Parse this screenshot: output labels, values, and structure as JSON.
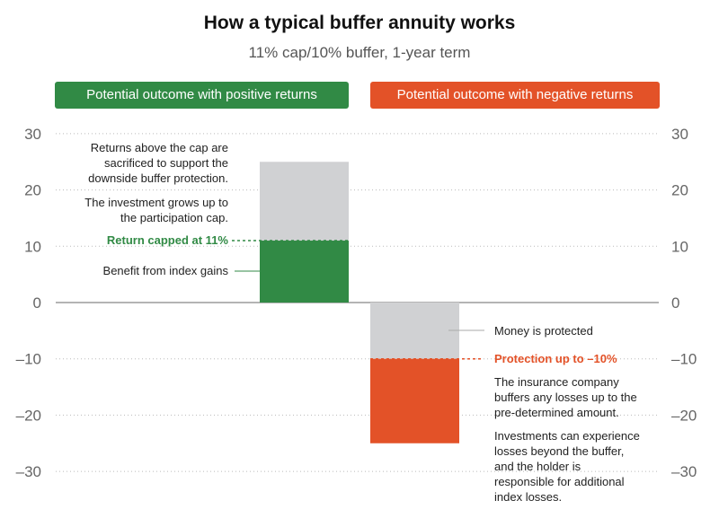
{
  "chart_data": {
    "type": "bar",
    "title": "How a typical buffer annuity works",
    "subtitle": "11% cap/10% buffer, 1-year term",
    "legend": [
      {
        "label": "Potential outcome with positive returns",
        "color": "#318a45"
      },
      {
        "label": "Potential outcome with negative returns",
        "color": "#e35228"
      }
    ],
    "ylim": [
      -30,
      30
    ],
    "yticks": [
      30,
      20,
      10,
      0,
      -10,
      -20,
      -30
    ],
    "ytick_labels": [
      "30",
      "20",
      "10",
      "0",
      "–10",
      "–20",
      "–30"
    ],
    "grid": true,
    "bars": [
      {
        "name": "positive",
        "index_return": 25,
        "credited": 11,
        "cap": 11,
        "color": "#318a45",
        "sacrificed_color": "#d0d1d3"
      },
      {
        "name": "negative",
        "index_return": -25,
        "buffer": -10,
        "loss": -15,
        "color": "#e35228",
        "protected_color": "#d0d1d3"
      }
    ],
    "annotations": {
      "sacrificed": [
        "Returns above the cap are",
        "sacrificed to support the",
        "downside buffer protection."
      ],
      "grows": [
        "The investment grows up to",
        "the participation cap."
      ],
      "capped": "Return capped at 11%",
      "benefit": "Benefit from index gains",
      "protected": "Money is protected",
      "protection": "Protection up to –10%",
      "insurance": [
        "The insurance company",
        "buffers any losses up to the",
        "pre-determined amount."
      ],
      "losses": [
        "Investments can experience",
        "losses beyond the buffer,",
        "and the holder is",
        "responsible for additional",
        "index losses."
      ]
    }
  }
}
